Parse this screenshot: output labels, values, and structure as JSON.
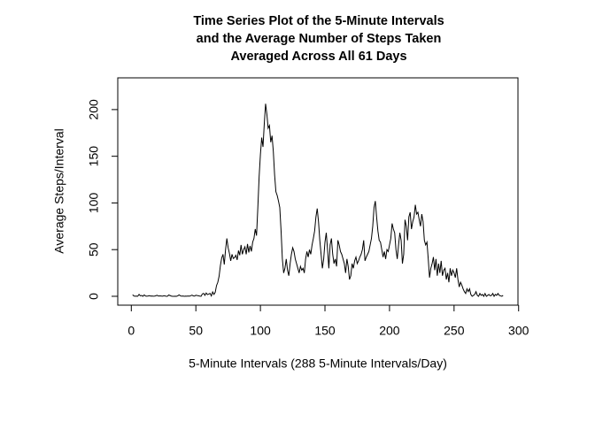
{
  "chart_data": {
    "type": "line",
    "title": [
      "Time Series Plot of the 5-Minute Intervals",
      "and the Average Number of Steps Taken",
      "Averaged Across All 61 Days"
    ],
    "xlabel": "5-Minute Intervals (288 5-Minute Intervals/Day)",
    "ylabel": "Average Steps/Interval",
    "color": "#000000",
    "xlim": [
      -10.5,
      299.5
    ],
    "ylim": [
      -9.5,
      234
    ],
    "xticks": [
      0,
      50,
      100,
      150,
      200,
      250,
      300
    ],
    "yticks": [
      0,
      50,
      100,
      150,
      200
    ],
    "x": [
      1,
      2,
      3,
      4,
      5,
      6,
      7,
      8,
      9,
      10,
      11,
      12,
      13,
      14,
      15,
      16,
      17,
      18,
      19,
      20,
      21,
      22,
      23,
      24,
      25,
      26,
      27,
      28,
      29,
      30,
      31,
      32,
      33,
      34,
      35,
      36,
      37,
      38,
      39,
      40,
      41,
      42,
      43,
      44,
      45,
      46,
      47,
      48,
      49,
      50,
      51,
      52,
      53,
      54,
      55,
      56,
      57,
      58,
      59,
      60,
      61,
      62,
      63,
      64,
      65,
      66,
      67,
      68,
      69,
      70,
      71,
      72,
      73,
      74,
      75,
      76,
      77,
      78,
      79,
      80,
      81,
      82,
      83,
      84,
      85,
      86,
      87,
      88,
      89,
      90,
      91,
      92,
      93,
      94,
      95,
      96,
      97,
      98,
      99,
      100,
      101,
      102,
      103,
      104,
      105,
      106,
      107,
      108,
      109,
      110,
      111,
      112,
      113,
      114,
      115,
      116,
      117,
      118,
      119,
      120,
      121,
      122,
      123,
      124,
      125,
      126,
      127,
      128,
      129,
      130,
      131,
      132,
      133,
      134,
      135,
      136,
      137,
      138,
      139,
      140,
      141,
      142,
      143,
      144,
      145,
      146,
      147,
      148,
      149,
      150,
      151,
      152,
      153,
      154,
      155,
      156,
      157,
      158,
      159,
      160,
      161,
      162,
      163,
      164,
      165,
      166,
      167,
      168,
      169,
      170,
      171,
      172,
      173,
      174,
      175,
      176,
      177,
      178,
      179,
      180,
      181,
      182,
      183,
      184,
      185,
      186,
      187,
      188,
      189,
      190,
      191,
      192,
      193,
      194,
      195,
      196,
      197,
      198,
      199,
      200,
      201,
      202,
      203,
      204,
      205,
      206,
      207,
      208,
      209,
      210,
      211,
      212,
      213,
      214,
      215,
      216,
      217,
      218,
      219,
      220,
      221,
      222,
      223,
      224,
      225,
      226,
      227,
      228,
      229,
      230,
      231,
      232,
      233,
      234,
      235,
      236,
      237,
      238,
      239,
      240,
      241,
      242,
      243,
      244,
      245,
      246,
      247,
      248,
      249,
      250,
      251,
      252,
      253,
      254,
      255,
      256,
      257,
      258,
      259,
      260,
      261,
      262,
      263,
      264,
      265,
      266,
      267,
      268,
      269,
      270,
      271,
      272,
      273,
      274,
      275,
      276,
      277,
      278,
      279,
      280,
      281,
      282,
      283,
      284,
      285,
      286,
      287,
      288
    ],
    "values": [
      1.7,
      0.3,
      0.1,
      0.2,
      0.1,
      2.1,
      0.5,
      0.9,
      0,
      1.5,
      0.3,
      0.1,
      0.3,
      0.7,
      0.2,
      0.3,
      0.1,
      0.2,
      0.6,
      1.1,
      0.2,
      0.5,
      0.3,
      0.1,
      0.4,
      0.5,
      0,
      0.1,
      1.4,
      0.8,
      0.2,
      0,
      0,
      0.1,
      0,
      0.5,
      1.5,
      0.5,
      0.1,
      0.3,
      0,
      0.2,
      0.1,
      0.3,
      0.1,
      0.6,
      1.2,
      0.4,
      0.2,
      1.1,
      0.8,
      0.6,
      0.2,
      0,
      2.5,
      3.2,
      1.0,
      3.5,
      1.8,
      2.4,
      3.1,
      0.4,
      4.7,
      2.0,
      4.3,
      11.5,
      15.0,
      21.5,
      33.0,
      41.0,
      45.0,
      34.0,
      50.0,
      62.0,
      52.0,
      46.0,
      38.0,
      45.0,
      40.5,
      41.5,
      44,
      39,
      49,
      44,
      55,
      45,
      50,
      53,
      45,
      56,
      47,
      54,
      48,
      58,
      62,
      72,
      65,
      95,
      128,
      152,
      170,
      160,
      185,
      206.2,
      195,
      180,
      183,
      165,
      172,
      155,
      130,
      112,
      108,
      102,
      95,
      70,
      40,
      25,
      30,
      40,
      28,
      22,
      35,
      45,
      52,
      48,
      40,
      35,
      30,
      25,
      32,
      28,
      30,
      25,
      40,
      48,
      42,
      50,
      45,
      55,
      62,
      70,
      85,
      94,
      80,
      60,
      45,
      30,
      40,
      58,
      68,
      50,
      30,
      55,
      62,
      45,
      35,
      40,
      32,
      60,
      55,
      48,
      45,
      40,
      35,
      25,
      40,
      32,
      18,
      22,
      35,
      30,
      38,
      42,
      35,
      38,
      42,
      45,
      50,
      60,
      38,
      42,
      45,
      48,
      55,
      62,
      75,
      95,
      102,
      85,
      70,
      60,
      58,
      50,
      42,
      48,
      40,
      50,
      48,
      55,
      62,
      78,
      72,
      68,
      50,
      40,
      55,
      68,
      60,
      35,
      45,
      82,
      75,
      60,
      85,
      90,
      72,
      80,
      85,
      98,
      88,
      90,
      82,
      75,
      88,
      80,
      60,
      55,
      58,
      40,
      20,
      30,
      35,
      42,
      28,
      40,
      22,
      35,
      25,
      38,
      22,
      28,
      30,
      18,
      25,
      15,
      30,
      22,
      28,
      25,
      20,
      30,
      18,
      10,
      15,
      12,
      8,
      5,
      3,
      8,
      5,
      8,
      2,
      0,
      1,
      2,
      5,
      1,
      0,
      3,
      1,
      2,
      0,
      3,
      0,
      1,
      2,
      0.5,
      1,
      3,
      0,
      2,
      1,
      3,
      1,
      0.5,
      0,
      1
    ]
  }
}
